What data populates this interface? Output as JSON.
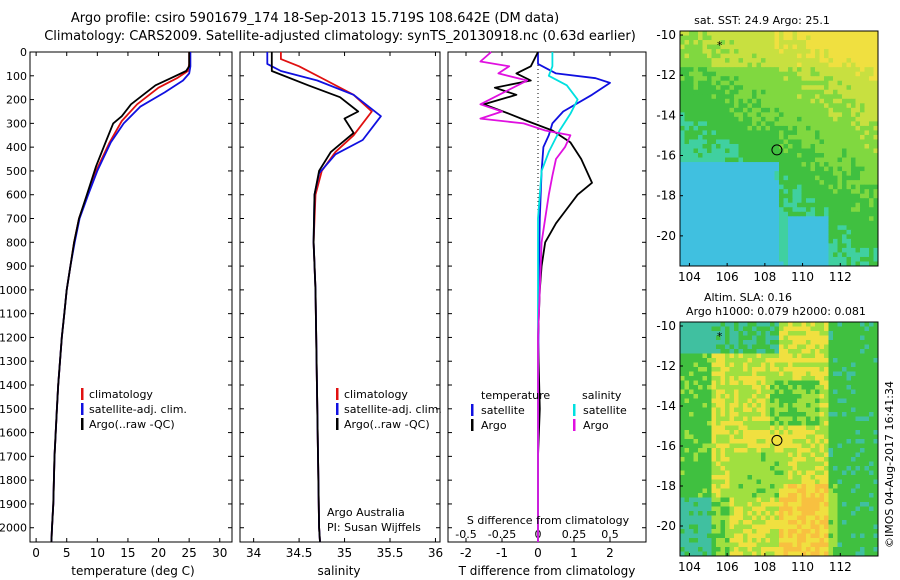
{
  "header": {
    "line1": "Argo profile: csiro 5901679_174 18-Sep-2013 15.719S 108.642E (DM data)",
    "line2": "Climatology: CARS2009. Satellite-adjusted climatology: synTS_20130918.nc (0.63d earlier)"
  },
  "colors": {
    "climatology": "#e01010",
    "satellite": "#1010e0",
    "argo": "#000000",
    "s_satellite": "#00e0e0",
    "s_argo": "#e010e0"
  },
  "chart_data": [
    {
      "type": "line",
      "id": "temperature",
      "xlabel": "temperature (deg C)",
      "ylabel": "",
      "xlim": [
        -1,
        32
      ],
      "ylim": [
        0,
        2060
      ],
      "y_inverted": true,
      "xticks": [
        0,
        5,
        10,
        15,
        20,
        25,
        30
      ],
      "yticks": [
        0,
        100,
        200,
        300,
        400,
        500,
        600,
        700,
        800,
        900,
        1000,
        1100,
        1200,
        1300,
        1400,
        1500,
        1600,
        1700,
        1800,
        1900,
        2000
      ],
      "legend": [
        "climatology",
        "satellite-adj. clim.",
        "Argo(..raw -QC)"
      ],
      "series": [
        {
          "name": "climatology",
          "color": "#e01010",
          "points": [
            [
              25,
              0
            ],
            [
              25,
              50
            ],
            [
              24.8,
              80
            ],
            [
              23,
              110
            ],
            [
              20,
              150
            ],
            [
              16.5,
              220
            ],
            [
              14,
              290
            ],
            [
              12,
              380
            ],
            [
              9.8,
              500
            ],
            [
              8.4,
              600
            ],
            [
              7,
              700
            ],
            [
              6.2,
              800
            ],
            [
              5.6,
              900
            ],
            [
              5,
              1000
            ],
            [
              4.6,
              1100
            ],
            [
              4.2,
              1200
            ],
            [
              3.9,
              1300
            ],
            [
              3.6,
              1400
            ],
            [
              3.4,
              1500
            ],
            [
              3.2,
              1600
            ],
            [
              3,
              1700
            ],
            [
              2.9,
              1800
            ],
            [
              2.8,
              1900
            ],
            [
              2.6,
              2000
            ],
            [
              2.5,
              2060
            ]
          ]
        },
        {
          "name": "satellite-adj. clim.",
          "color": "#1010e0",
          "points": [
            [
              25.2,
              0
            ],
            [
              25.2,
              60
            ],
            [
              25,
              90
            ],
            [
              24,
              120
            ],
            [
              21,
              170
            ],
            [
              17,
              230
            ],
            [
              14.3,
              300
            ],
            [
              12.2,
              380
            ],
            [
              10,
              500
            ],
            [
              8.5,
              600
            ],
            [
              7.1,
              700
            ],
            [
              6.3,
              800
            ],
            [
              5.6,
              900
            ],
            [
              5,
              1000
            ],
            [
              4.6,
              1100
            ],
            [
              4.2,
              1200
            ],
            [
              3.9,
              1300
            ],
            [
              3.6,
              1400
            ],
            [
              3.4,
              1500
            ],
            [
              3.2,
              1600
            ],
            [
              3,
              1700
            ],
            [
              2.9,
              1800
            ],
            [
              2.8,
              1900
            ],
            [
              2.6,
              2000
            ],
            [
              2.5,
              2060
            ]
          ]
        },
        {
          "name": "Argo(..raw -QC)",
          "color": "#000000",
          "points": [
            [
              25,
              0
            ],
            [
              25,
              60
            ],
            [
              24.5,
              80
            ],
            [
              22,
              110
            ],
            [
              19.5,
              140
            ],
            [
              17.5,
              180
            ],
            [
              15.5,
              220
            ],
            [
              14,
              270
            ],
            [
              12.6,
              300
            ],
            [
              11.5,
              370
            ],
            [
              9.8,
              480
            ],
            [
              8.3,
              600
            ],
            [
              7,
              700
            ],
            [
              6.2,
              800
            ],
            [
              5.6,
              900
            ],
            [
              5,
              1000
            ],
            [
              4.6,
              1100
            ],
            [
              4.2,
              1200
            ],
            [
              3.9,
              1300
            ],
            [
              3.6,
              1400
            ],
            [
              3.4,
              1500
            ],
            [
              3.2,
              1600
            ],
            [
              3,
              1700
            ],
            [
              2.9,
              1800
            ],
            [
              2.8,
              1900
            ],
            [
              2.6,
              2000
            ],
            [
              2.5,
              2060
            ]
          ]
        }
      ]
    },
    {
      "type": "line",
      "id": "salinity",
      "xlabel": "salinity",
      "xlim": [
        33.85,
        36.05
      ],
      "ylim": [
        0,
        2060
      ],
      "y_inverted": true,
      "xticks": [
        34,
        34.5,
        35,
        35.5,
        36
      ],
      "legend": [
        "climatology",
        "satellite-adj. clim.",
        "Argo(..raw -QC)"
      ],
      "annotation": [
        "Argo Australia",
        "PI: Susan Wijffels"
      ],
      "series": [
        {
          "name": "climatology",
          "color": "#e01010",
          "points": [
            [
              34.3,
              0
            ],
            [
              34.3,
              30
            ],
            [
              34.5,
              60
            ],
            [
              34.8,
              120
            ],
            [
              35.1,
              180
            ],
            [
              35.3,
              250
            ],
            [
              35.1,
              350
            ],
            [
              34.9,
              420
            ],
            [
              34.75,
              500
            ],
            [
              34.68,
              600
            ],
            [
              34.66,
              800
            ],
            [
              34.68,
              1000
            ],
            [
              34.7,
              1500
            ],
            [
              34.72,
              2000
            ],
            [
              34.73,
              2060
            ]
          ]
        },
        {
          "name": "satellite-adj. clim.",
          "color": "#1010e0",
          "points": [
            [
              34.15,
              0
            ],
            [
              34.15,
              50
            ],
            [
              34.3,
              80
            ],
            [
              34.7,
              120
            ],
            [
              35.1,
              180
            ],
            [
              35.4,
              270
            ],
            [
              35.2,
              370
            ],
            [
              34.9,
              430
            ],
            [
              34.72,
              510
            ],
            [
              34.67,
              600
            ],
            [
              34.66,
              800
            ],
            [
              34.68,
              1000
            ],
            [
              34.7,
              1500
            ],
            [
              34.72,
              2000
            ],
            [
              34.73,
              2060
            ]
          ]
        },
        {
          "name": "Argo(..raw -QC)",
          "color": "#000000",
          "points": [
            [
              34.2,
              0
            ],
            [
              34.2,
              80
            ],
            [
              34.6,
              140
            ],
            [
              34.95,
              190
            ],
            [
              35.15,
              250
            ],
            [
              35.0,
              280
            ],
            [
              35.1,
              340
            ],
            [
              34.85,
              420
            ],
            [
              34.72,
              500
            ],
            [
              34.67,
              600
            ],
            [
              34.66,
              800
            ],
            [
              34.68,
              1000
            ],
            [
              34.7,
              1500
            ],
            [
              34.72,
              2000
            ],
            [
              34.73,
              2060
            ]
          ]
        }
      ]
    },
    {
      "type": "line",
      "id": "differences",
      "xlabel": "T difference from climatology",
      "top_axis_label": "S difference from climatology",
      "xlim": [
        -2.5,
        3
      ],
      "ylim": [
        0,
        2060
      ],
      "y_inverted": true,
      "xticks": [
        -2,
        -1,
        0,
        1,
        2
      ],
      "top_tick_labels": [
        "-0.5",
        "-0.25",
        "0",
        "0.25",
        "0.5"
      ],
      "top_tick_values": [
        -2,
        -1,
        0,
        1,
        2
      ],
      "legend_titles": [
        "temperature",
        "salinity"
      ],
      "legend": [
        "satellite",
        "Argo",
        "satellite",
        "Argo"
      ],
      "series": [
        {
          "name": "T satellite",
          "color": "#1010e0",
          "points": [
            [
              0,
              0
            ],
            [
              0,
              50
            ],
            [
              0.5,
              90
            ],
            [
              1.6,
              110
            ],
            [
              2,
              130
            ],
            [
              1.5,
              180
            ],
            [
              0.7,
              250
            ],
            [
              0.4,
              300
            ],
            [
              0.3,
              350
            ],
            [
              0.15,
              400
            ],
            [
              0.1,
              500
            ],
            [
              0.05,
              700
            ],
            [
              0.02,
              1000
            ],
            [
              0,
              1500
            ],
            [
              0,
              2060
            ]
          ]
        },
        {
          "name": "T Argo",
          "color": "#000000",
          "points": [
            [
              0,
              0
            ],
            [
              -0.2,
              60
            ],
            [
              -0.6,
              90
            ],
            [
              -0.2,
              120
            ],
            [
              -1.2,
              150
            ],
            [
              -0.6,
              180
            ],
            [
              -1.5,
              220
            ],
            [
              -0.8,
              260
            ],
            [
              -0.3,
              290
            ],
            [
              0.4,
              330
            ],
            [
              0.9,
              380
            ],
            [
              1.2,
              450
            ],
            [
              1.5,
              550
            ],
            [
              1.1,
              600
            ],
            [
              0.8,
              660
            ],
            [
              0.5,
              720
            ],
            [
              0.2,
              800
            ],
            [
              0.1,
              900
            ],
            [
              0.05,
              1000
            ],
            [
              0,
              1200
            ],
            [
              0.05,
              1500
            ],
            [
              0,
              1700
            ],
            [
              0,
              2060
            ]
          ]
        },
        {
          "name": "S satellite",
          "color": "#00e0e0",
          "points": [
            [
              0.4,
              0
            ],
            [
              0.4,
              60
            ],
            [
              0.3,
              100
            ],
            [
              0.8,
              140
            ],
            [
              1.1,
              200
            ],
            [
              0.9,
              260
            ],
            [
              0.6,
              330
            ],
            [
              0.3,
              420
            ],
            [
              0.1,
              500
            ],
            [
              0.05,
              600
            ],
            [
              0,
              700
            ],
            [
              0,
              2060
            ]
          ]
        },
        {
          "name": "S Argo",
          "color": "#e010e0",
          "points": [
            [
              -1.3,
              0
            ],
            [
              -1.6,
              40
            ],
            [
              -0.8,
              60
            ],
            [
              -1.1,
              90
            ],
            [
              -0.3,
              120
            ],
            [
              -1.6,
              220
            ],
            [
              -1.0,
              250
            ],
            [
              -1.6,
              280
            ],
            [
              -0.4,
              300
            ],
            [
              0.2,
              330
            ],
            [
              0.9,
              350
            ],
            [
              0.75,
              400
            ],
            [
              0.5,
              450
            ],
            [
              0.4,
              520
            ],
            [
              0.3,
              600
            ],
            [
              0.2,
              700
            ],
            [
              0.1,
              800
            ],
            [
              0.05,
              1000
            ],
            [
              0,
              1200
            ],
            [
              0,
              2060
            ]
          ]
        }
      ]
    },
    {
      "type": "heatmap",
      "id": "sst_map",
      "title": "sat. SST: 24.9  Argo: 25.1",
      "xlim": [
        103.5,
        114
      ],
      "ylim": [
        -21.5,
        -9.8
      ],
      "xticks": [
        104,
        106,
        108,
        110,
        112
      ],
      "yticks": [
        -10,
        -12,
        -14,
        -16,
        -18,
        -20
      ],
      "profile_location": [
        108.64,
        -15.72
      ],
      "marker": [
        105.6,
        -10.5
      ],
      "colors": [
        "#40c0e0",
        "#40d0a0",
        "#40c040",
        "#80d840",
        "#c8e040",
        "#f0e040"
      ]
    },
    {
      "type": "heatmap",
      "id": "sla_map",
      "title": "Altim. SLA: 0.16",
      "subtitle": "Argo h1000: 0.079 h2000: 0.081",
      "xlim": [
        103.5,
        114
      ],
      "ylim": [
        -21.5,
        -9.8
      ],
      "xticks": [
        104,
        106,
        108,
        110,
        112
      ],
      "yticks": [
        -10,
        -12,
        -14,
        -16,
        -18,
        -20
      ],
      "profile_location": [
        108.64,
        -15.72
      ],
      "marker": [
        105.6,
        -10.5
      ],
      "colors": [
        "#40c0a0",
        "#40c040",
        "#a0e040",
        "#f0e040",
        "#f8c040"
      ]
    }
  ],
  "stamp": "©IMOS 04-Aug-2017 16:41:34"
}
